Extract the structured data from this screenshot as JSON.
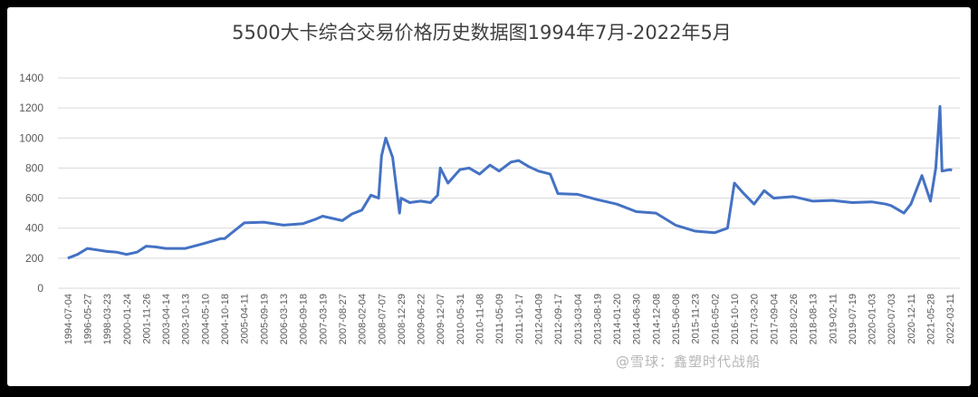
{
  "chart_data": {
    "type": "line",
    "title": "5500大卡综合交易价格历史数据图1994年7月-2022年5月",
    "xlabel": "",
    "ylabel": "",
    "ylim": [
      0,
      1400
    ],
    "yticks": [
      0,
      200,
      400,
      600,
      800,
      1000,
      1200,
      1400
    ],
    "grid": true,
    "legend": "none",
    "color": "#4472C4",
    "xticks": [
      "1994-07-04",
      "1996-05-27",
      "1998-03-23",
      "2000-01-24",
      "2001-11-26",
      "2003-04-14",
      "2003-10-13",
      "2004-05-10",
      "2004-10-18",
      "2005-04-11",
      "2005-09-19",
      "2006-03-13",
      "2006-09-18",
      "2007-03-19",
      "2007-08-27",
      "2008-02-04",
      "2008-07-07",
      "2008-12-29",
      "2009-06-22",
      "2009-12-07",
      "2010-05-31",
      "2010-11-08",
      "2011-05-09",
      "2011-10-17",
      "2012-04-09",
      "2012-09-17",
      "2013-03-04",
      "2013-08-19",
      "2014-01-20",
      "2014-06-30",
      "2014-12-08",
      "2015-06-08",
      "2015-11-23",
      "2016-05-02",
      "2016-10-10",
      "2017-03-20",
      "2017-09-04",
      "2018-02-26",
      "2018-08-13",
      "2019-02-11",
      "2019-07-19",
      "2020-01-03",
      "2020-07-03",
      "2020-12-11",
      "2021-05-28",
      "2022-03-11"
    ],
    "x": [
      "1994-07-04",
      "1995-06",
      "1996-05-27",
      "1997-04",
      "1998-03-23",
      "1999-02",
      "2000-01-24",
      "2001-01",
      "2001-11-26",
      "2002-07",
      "2003-04-14",
      "2003-10-13",
      "2004-05-10",
      "2004-09",
      "2004-10-18",
      "2005-04-11",
      "2005-09-19",
      "2006-03-13",
      "2006-09-18",
      "2007-01",
      "2007-03-19",
      "2007-08-27",
      "2007-11",
      "2008-02-04",
      "2008-04",
      "2008-06",
      "2008-07-07",
      "2008-08",
      "2008-10",
      "2008-12",
      "2008-12-29",
      "2009-03",
      "2009-06-22",
      "2009-09",
      "2009-11",
      "2009-12-07",
      "2010-02",
      "2010-05-31",
      "2010-08",
      "2010-11-08",
      "2011-02",
      "2011-05-09",
      "2011-08",
      "2011-10-17",
      "2012-01",
      "2012-04-09",
      "2012-07",
      "2012-09-17",
      "2013-03-04",
      "2013-08-19",
      "2014-01-20",
      "2014-06-30",
      "2014-12-08",
      "2015-06-08",
      "2015-11-23",
      "2016-05-02",
      "2016-08",
      "2016-10-10",
      "2016-12",
      "2017-03-20",
      "2017-06",
      "2017-09-04",
      "2018-02-26",
      "2018-08-13",
      "2019-02-11",
      "2019-07-19",
      "2020-01-03",
      "2020-05",
      "2020-07-03",
      "2020-10",
      "2020-12-11",
      "2021-03",
      "2021-05-28",
      "2021-08",
      "2021-10",
      "2021-11",
      "2022-03-11",
      "2022-05"
    ],
    "values": [
      200,
      225,
      265,
      255,
      245,
      240,
      225,
      240,
      280,
      275,
      265,
      265,
      300,
      330,
      330,
      435,
      440,
      420,
      430,
      460,
      480,
      450,
      495,
      520,
      620,
      600,
      880,
      1000,
      870,
      500,
      600,
      570,
      580,
      570,
      620,
      800,
      700,
      790,
      800,
      760,
      820,
      780,
      840,
      850,
      810,
      780,
      760,
      630,
      625,
      590,
      560,
      510,
      500,
      420,
      380,
      370,
      400,
      700,
      640,
      560,
      650,
      600,
      610,
      580,
      585,
      570,
      575,
      560,
      550,
      500,
      560,
      750,
      580,
      800,
      1210,
      780,
      790,
      785
    ]
  },
  "watermark": "@雪球：鑫塑时代战船"
}
